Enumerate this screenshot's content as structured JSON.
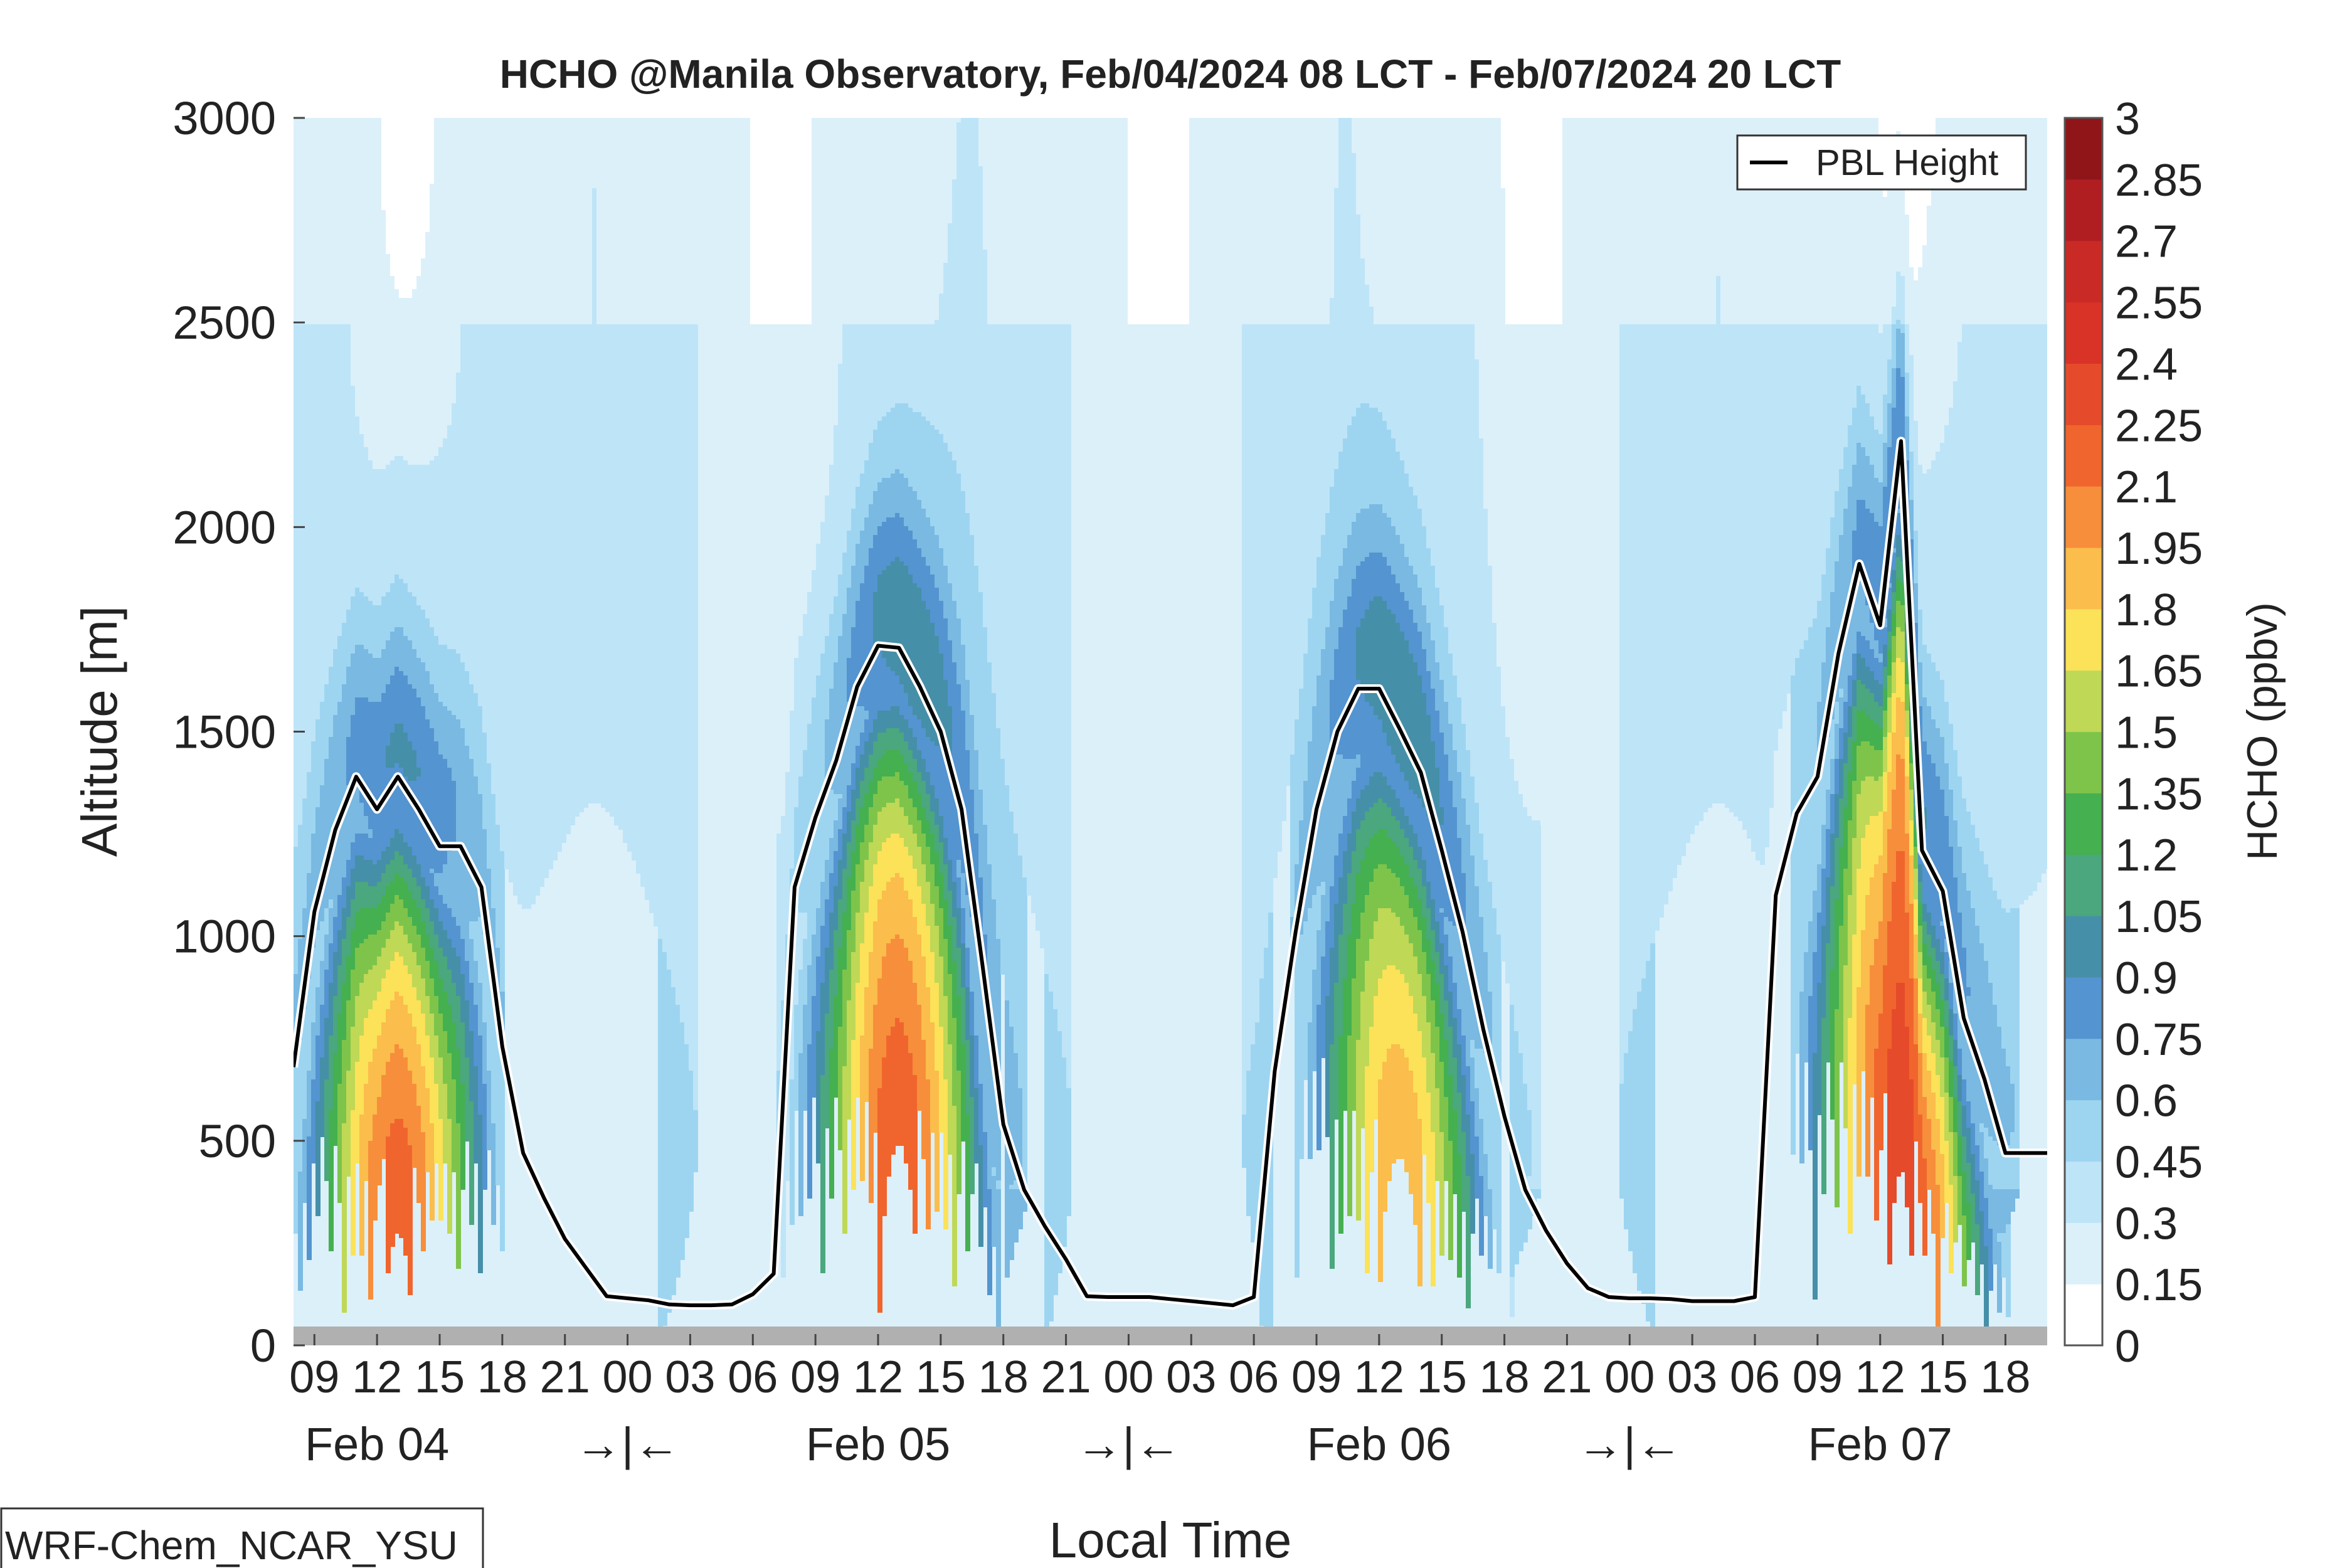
{
  "chart_data": {
    "type": "heatmap",
    "title": "HCHO @Manila Observatory, Feb/04/2024 08 LCT - Feb/07/2024 20 LCT",
    "xlabel": "Local Time",
    "ylabel": "Altitude [m]",
    "ylim": [
      0,
      3000
    ],
    "y_ticks": [
      "0",
      "500",
      "1000",
      "1500",
      "2000",
      "2500",
      "3000"
    ],
    "x_range_hours": [
      8,
      92
    ],
    "x_ticks": [
      "09",
      "12",
      "15",
      "18",
      "21",
      "00",
      "03",
      "06",
      "09",
      "12",
      "15",
      "18",
      "21",
      "00",
      "03",
      "06",
      "09",
      "12",
      "15",
      "18",
      "21",
      "00",
      "03",
      "06",
      "09",
      "12",
      "15",
      "18"
    ],
    "x_groups": [
      {
        "label": "Feb 04",
        "hour": 12
      },
      {
        "label": "→|←",
        "hour": 24
      },
      {
        "label": "Feb 05",
        "hour": 36
      },
      {
        "label": "→|←",
        "hour": 48
      },
      {
        "label": "Feb 06",
        "hour": 60
      },
      {
        "label": "→|←",
        "hour": 72
      },
      {
        "label": "Feb 07",
        "hour": 84
      }
    ],
    "colorbar": {
      "label": "HCHO (ppbv)",
      "min": 0,
      "max": 3,
      "step": 0.15,
      "tick_labels": [
        "0",
        "0.15",
        "0.3",
        "0.45",
        "0.6",
        "0.75",
        "0.9",
        "1.05",
        "1.2",
        "1.35",
        "1.5",
        "1.65",
        "1.8",
        "1.95",
        "2.1",
        "2.25",
        "2.4",
        "2.55",
        "2.7",
        "2.85",
        "3"
      ],
      "colors": [
        "#ffffff",
        "#dcf0fa",
        "#bee4f7",
        "#9dd5f1",
        "#79b9e2",
        "#5494d0",
        "#468fa8",
        "#4aa77e",
        "#45b04f",
        "#7ec44b",
        "#bfd856",
        "#fbe258",
        "#fbbd4b",
        "#f78e3b",
        "#f0652d",
        "#e54b2b",
        "#d93227",
        "#c92a26",
        "#b01e22",
        "#8f1519"
      ]
    },
    "legend": {
      "entries": [
        "PBL Height"
      ],
      "position": "top-right"
    },
    "pbl_height": {
      "name": "PBL Height",
      "hours": [
        8,
        9,
        10,
        11,
        12,
        13,
        14,
        15,
        16,
        17,
        18,
        19,
        20,
        21,
        22,
        23,
        24,
        25,
        26,
        27,
        28,
        29,
        30,
        31,
        32,
        33,
        34,
        35,
        36,
        37,
        38,
        39,
        40,
        41,
        42,
        43,
        44,
        45,
        46,
        47,
        48,
        49,
        50,
        51,
        52,
        53,
        54,
        55,
        56,
        57,
        58,
        59,
        60,
        61,
        62,
        63,
        64,
        65,
        66,
        67,
        68,
        69,
        70,
        71,
        72,
        73,
        74,
        75,
        76,
        77,
        78,
        79,
        80,
        81,
        82,
        83,
        84,
        85,
        86,
        87,
        88,
        89,
        90,
        91,
        92
      ],
      "values": [
        680,
        1060,
        1260,
        1390,
        1310,
        1390,
        1310,
        1220,
        1220,
        1120,
        730,
        470,
        360,
        260,
        190,
        120,
        115,
        110,
        100,
        98,
        98,
        100,
        125,
        175,
        1120,
        1290,
        1430,
        1610,
        1710,
        1705,
        1610,
        1500,
        1310,
        930,
        540,
        380,
        290,
        210,
        120,
        118,
        118,
        118,
        113,
        108,
        103,
        98,
        118,
        670,
        1010,
        1310,
        1500,
        1605,
        1605,
        1505,
        1400,
        1210,
        1010,
        770,
        560,
        380,
        280,
        200,
        140,
        118,
        115,
        115,
        113,
        108,
        108,
        108,
        118,
        1100,
        1300,
        1390,
        1690,
        1910,
        1760,
        2210,
        1210,
        1110,
        800,
        650,
        470,
        470,
        470
      ]
    },
    "hcho_feature_peaks": [
      {
        "hour": 13,
        "peak_ppbv": 2.3
      },
      {
        "hour": 37,
        "peak_ppbv": 2.35
      },
      {
        "hour": 61,
        "peak_ppbv": 2.05
      },
      {
        "hour": 85,
        "peak_ppbv": 2.45
      }
    ],
    "ground_band": "gray below ~50 m"
  },
  "annotation_box": "WRF-Chem_NCAR_YSU"
}
